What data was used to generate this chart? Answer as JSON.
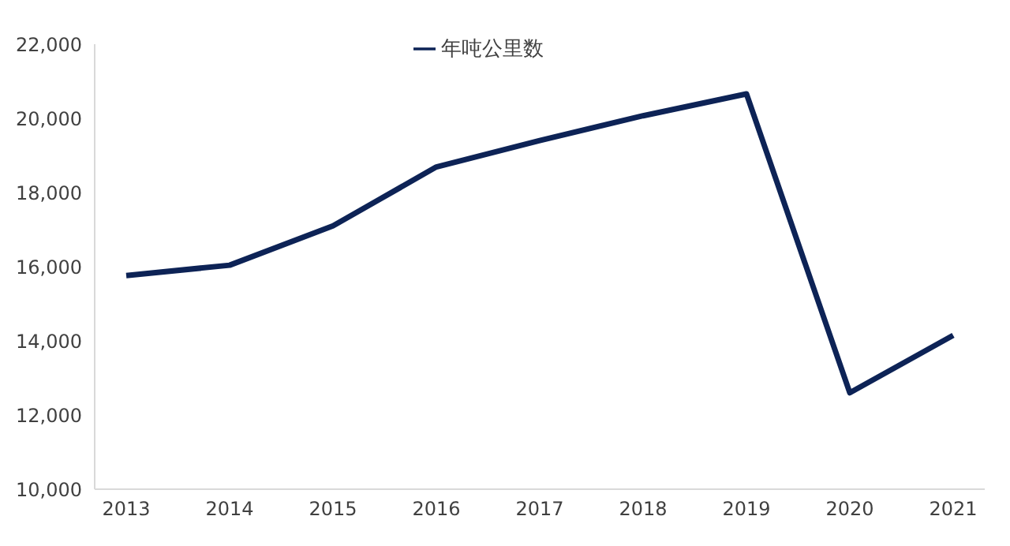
{
  "chart_data": {
    "type": "line",
    "categories": [
      "2013",
      "2014",
      "2015",
      "2016",
      "2017",
      "2018",
      "2019",
      "2020",
      "2021"
    ],
    "series": [
      {
        "name": "年吨公里数",
        "color": "#0d2356",
        "values": [
          15760,
          16040,
          17100,
          18690,
          19400,
          20070,
          20660,
          12600,
          14150
        ]
      }
    ],
    "ylim": [
      10000,
      22000
    ],
    "yticks": [
      {
        "value": 10000,
        "label": "10,000"
      },
      {
        "value": 12000,
        "label": "12,000"
      },
      {
        "value": 14000,
        "label": "14,000"
      },
      {
        "value": 16000,
        "label": "16,000"
      },
      {
        "value": 18000,
        "label": "18,000"
      },
      {
        "value": 20000,
        "label": "20,000"
      },
      {
        "value": 22000,
        "label": "22,000"
      }
    ],
    "grid": false,
    "legend": "top",
    "marker": "none",
    "line_style": "solid"
  }
}
